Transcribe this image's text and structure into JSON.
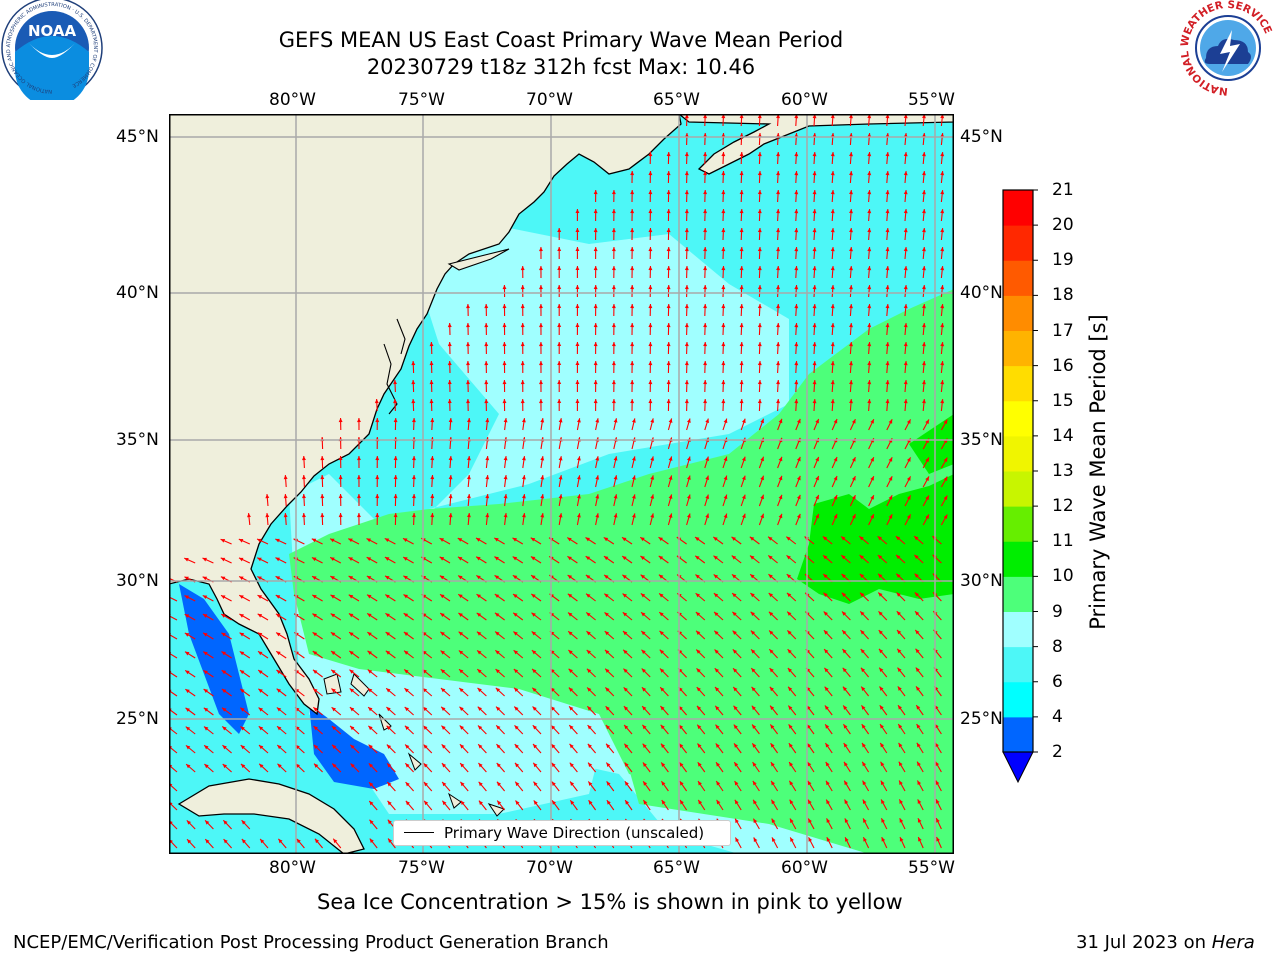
{
  "header": {
    "title_line1": "GEFS MEAN US East Coast Primary Wave Mean Period",
    "title_line2": "20230729 t18z 312h fcst   Max: 10.46"
  },
  "logos": {
    "left_name": "NOAA",
    "left_ring_text": "NATIONAL OCEANIC AND ATMOSPHERIC ADMINISTRATION · U.S. DEPARTMENT OF COMMERCE",
    "right_ring_text": "NATIONAL WEATHER SERVICE"
  },
  "map": {
    "lon_labels": [
      "80°W",
      "75°W",
      "70°W",
      "65°W",
      "60°W",
      "55°W"
    ],
    "lat_labels": [
      "45°N",
      "40°N",
      "35°N",
      "30°N",
      "25°N"
    ],
    "legend_label": "Primary Wave Direction (unscaled)"
  },
  "colorbar": {
    "label": "Primary Wave Mean Period [s]",
    "ticks": [
      "2",
      "4",
      "6",
      "8",
      "9",
      "10",
      "11",
      "12",
      "13",
      "14",
      "15",
      "16",
      "17",
      "18",
      "19",
      "20",
      "21"
    ],
    "colors": [
      "#0066ff",
      "#00ffff",
      "#4df7f7",
      "#a0ffff",
      "#4dff7a",
      "#00ee00",
      "#66ee00",
      "#c8f500",
      "#f0f500",
      "#ffff00",
      "#ffdd00",
      "#ffb300",
      "#ff8c00",
      "#ff5a00",
      "#ff2800",
      "#ff0000"
    ],
    "extend_color": "#0000ff"
  },
  "notes": {
    "sea_ice": "Sea Ice Concentration > 15% is shown in pink to yellow",
    "credit": "NCEP/EMC/Verification Post Processing Product Generation Branch",
    "date_prefix": "31 Jul 2023 on ",
    "host": "Hera"
  }
}
